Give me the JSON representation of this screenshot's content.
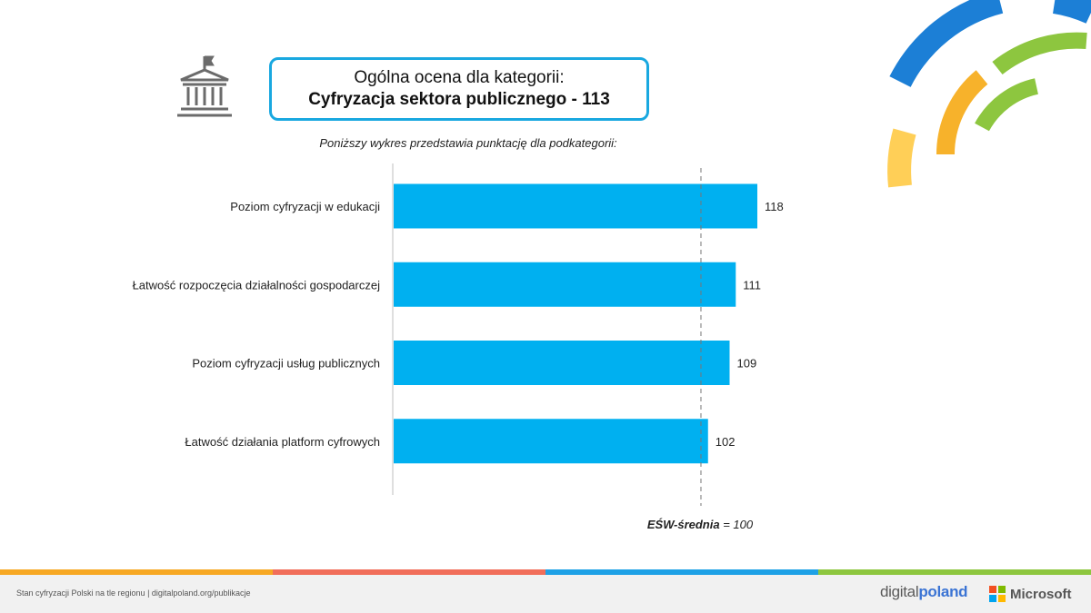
{
  "header": {
    "title_line1": "Ogólna ocena dla kategorii:",
    "title_line2": "Cyfryzacja sektora publicznego - 113",
    "subtitle": "Poniższy wykres przedstawia punktację dla podkategorii:"
  },
  "chart_data": {
    "type": "bar",
    "orientation": "horizontal",
    "categories": [
      "Poziom cyfryzacji w edukacji",
      "Łatwość rozpoczęcia działalności gospodarczej",
      "Poziom cyfryzacji usług publicznych",
      "Łatwość działania platform cyfrowych"
    ],
    "values": [
      118,
      111,
      109,
      102
    ],
    "data_labels": [
      "118",
      "111",
      "109",
      "102"
    ],
    "reference_line": {
      "value": 100,
      "style": "dashed"
    },
    "xlim": [
      0,
      118
    ],
    "bar_color": "#00b0f0",
    "grid": false
  },
  "average_note": {
    "label": "EŚW-średnia",
    "value_text": "= 100"
  },
  "footer": {
    "text": "Stan cyfryzacji Polski na tle regionu | digitalpoland.org/publikacje",
    "logo_digital": "digital",
    "logo_poland": "poland",
    "logo_microsoft": "Microsoft"
  },
  "colors": {
    "accent_blue": "#19a8e0",
    "bar": "#00b0f0",
    "stripe": [
      "#f7a823",
      "#f16e5a",
      "#1ea1e6",
      "#8dc63f"
    ],
    "ms": [
      "#f25022",
      "#7fba00",
      "#00a4ef",
      "#ffb900"
    ]
  },
  "icons": {
    "header_icon": "government-building-icon"
  }
}
